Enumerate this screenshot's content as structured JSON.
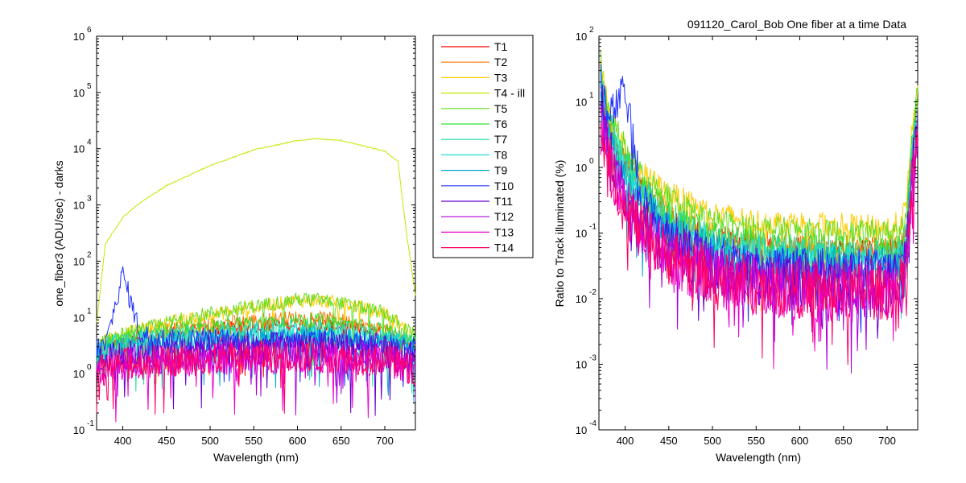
{
  "figure_title": "091120_Carol_Bob  One fiber at a time Data",
  "colors": {
    "T1": "#ff0000",
    "T2": "#ff7700",
    "T3": "#ffcc00",
    "T4 - ill": "#c8e600",
    "T5": "#66dd22",
    "T6": "#33dd33",
    "T7": "#22ddaa",
    "T8": "#22dddd",
    "T9": "#00aacc",
    "T10": "#2233ff",
    "T11": "#6600cc",
    "T12": "#aa00dd",
    "T13": "#ee00cc",
    "T14": "#ff0066"
  },
  "chart_data": [
    {
      "type": "line",
      "xlabel": "Wavelength (nm)",
      "ylabel": "one_fiber3  (ADU/sec) - darks",
      "xlim": [
        370,
        735
      ],
      "ylim": [
        0.1,
        1000000
      ],
      "yscale": "log",
      "xticks": [
        "400",
        "450",
        "500",
        "550",
        "600",
        "650",
        "700"
      ],
      "ytick_exponents": [
        "-1",
        "0",
        "1",
        "2",
        "3",
        "4",
        "5",
        "6"
      ],
      "ytick_base": "10",
      "legend": [
        "T1",
        "T2",
        "T3",
        "T4 - ill",
        "T5",
        "T6",
        "T7",
        "T8",
        "T9",
        "T10",
        "T11",
        "T12",
        "T13",
        "T14"
      ],
      "legend_position": "outside-right",
      "x": [
        370,
        380,
        400,
        420,
        450,
        500,
        550,
        600,
        620,
        650,
        700,
        715,
        725,
        735
      ],
      "series": [
        {
          "name": "T1",
          "values": [
            2,
            3,
            3.5,
            4,
            5,
            6,
            7,
            7.5,
            7.5,
            7,
            5,
            4,
            3.5,
            3
          ]
        },
        {
          "name": "T2",
          "values": [
            2,
            3,
            4,
            5,
            6,
            7.5,
            9,
            10,
            10,
            9,
            6,
            5,
            4,
            3.5
          ]
        },
        {
          "name": "T3",
          "values": [
            3,
            4,
            5,
            6,
            8,
            11,
            15,
            20,
            20,
            18,
            12,
            8,
            6,
            5
          ]
        },
        {
          "name": "T4 - ill",
          "values": [
            8,
            200,
            600,
            1100,
            2200,
            5000,
            9500,
            14000,
            15000,
            14000,
            9000,
            6000,
            300,
            25
          ]
        },
        {
          "name": "T5",
          "values": [
            3,
            4,
            5,
            6,
            8,
            12,
            16,
            21,
            21,
            18,
            12,
            8,
            6,
            5
          ]
        },
        {
          "name": "T6",
          "values": [
            2.5,
            3.5,
            4,
            5,
            6,
            7,
            8,
            9,
            9,
            8,
            6,
            5,
            4,
            4
          ]
        },
        {
          "name": "T7",
          "values": [
            2,
            3,
            3.5,
            4,
            4.5,
            5,
            5.5,
            6,
            6,
            5.5,
            4.5,
            4,
            3.5,
            3
          ]
        },
        {
          "name": "T8",
          "values": [
            2,
            3,
            3,
            3.5,
            4,
            4.5,
            5,
            5,
            5,
            4.8,
            4,
            3.5,
            3,
            3
          ]
        },
        {
          "name": "T9",
          "values": [
            1.8,
            2.5,
            3,
            3,
            3.5,
            4,
            4.2,
            4.5,
            4.5,
            4.2,
            3.5,
            3,
            3,
            2.8
          ]
        },
        {
          "name": "T10",
          "values": [
            3,
            3,
            60,
            5,
            4,
            4,
            4,
            4,
            4,
            4,
            3.5,
            3,
            3,
            3
          ]
        },
        {
          "name": "T11",
          "values": [
            1.5,
            2,
            2,
            2,
            2.5,
            2.5,
            2.8,
            3,
            3,
            2.8,
            2.5,
            2.2,
            2,
            2
          ]
        },
        {
          "name": "T12",
          "values": [
            1.2,
            1.5,
            1.8,
            1.8,
            2,
            2,
            2.2,
            2.3,
            2.3,
            2.2,
            2,
            1.8,
            1.6,
            1.5
          ]
        },
        {
          "name": "T13",
          "values": [
            1,
            1.2,
            1.5,
            1.5,
            1.6,
            1.8,
            1.8,
            2,
            2,
            1.8,
            1.6,
            1.5,
            1.3,
            1.2
          ]
        },
        {
          "name": "T14",
          "values": [
            1,
            1.3,
            1.5,
            1.6,
            1.7,
            1.8,
            2,
            2,
            2,
            1.9,
            1.7,
            1.5,
            1.3,
            1.2
          ]
        }
      ]
    },
    {
      "type": "line",
      "title": "091120_Carol_Bob  One fiber at a time Data",
      "xlabel": "Wavelength (nm)",
      "ylabel": "Ratio to Track illuminated (%)",
      "xlim": [
        370,
        735
      ],
      "ylim": [
        0.0001,
        100
      ],
      "yscale": "log",
      "xticks": [
        "400",
        "450",
        "500",
        "550",
        "600",
        "650",
        "700"
      ],
      "ytick_exponents": [
        "-4",
        "-3",
        "-2",
        "-1",
        "0",
        "1",
        "2"
      ],
      "ytick_base": "10",
      "x": [
        372,
        380,
        400,
        420,
        450,
        500,
        550,
        600,
        650,
        700,
        715,
        722,
        728,
        735
      ],
      "series": [
        {
          "name": "T1",
          "values": [
            20,
            5,
            1,
            0.4,
            0.15,
            0.08,
            0.06,
            0.055,
            0.05,
            0.05,
            0.06,
            0.1,
            1,
            5
          ]
        },
        {
          "name": "T2",
          "values": [
            30,
            6,
            1.2,
            0.5,
            0.2,
            0.1,
            0.07,
            0.065,
            0.06,
            0.06,
            0.07,
            0.12,
            1.5,
            8
          ]
        },
        {
          "name": "T3",
          "values": [
            40,
            8,
            2,
            0.8,
            0.4,
            0.2,
            0.15,
            0.14,
            0.13,
            0.12,
            0.14,
            0.25,
            3,
            15
          ]
        },
        {
          "name": "T4 - ill",
          "values": [
            100,
            100,
            100,
            100,
            100,
            100,
            100,
            100,
            100,
            100,
            100,
            100,
            100,
            100
          ]
        },
        {
          "name": "T5",
          "values": [
            40,
            8,
            2,
            0.7,
            0.35,
            0.15,
            0.12,
            0.11,
            0.1,
            0.1,
            0.12,
            0.2,
            3,
            15
          ]
        },
        {
          "name": "T6",
          "values": [
            30,
            6,
            1.5,
            0.5,
            0.2,
            0.1,
            0.07,
            0.06,
            0.06,
            0.055,
            0.065,
            0.1,
            2,
            10
          ]
        },
        {
          "name": "T7",
          "values": [
            20,
            5,
            1,
            0.35,
            0.15,
            0.07,
            0.05,
            0.045,
            0.04,
            0.04,
            0.05,
            0.08,
            1.5,
            8
          ]
        },
        {
          "name": "T8",
          "values": [
            20,
            4,
            0.8,
            0.3,
            0.12,
            0.06,
            0.045,
            0.04,
            0.038,
            0.035,
            0.04,
            0.07,
            1,
            6
          ]
        },
        {
          "name": "T9",
          "values": [
            15,
            3,
            0.6,
            0.25,
            0.1,
            0.05,
            0.035,
            0.032,
            0.03,
            0.03,
            0.035,
            0.06,
            1,
            5
          ]
        },
        {
          "name": "T10",
          "values": [
            30,
            5,
            15,
            0.3,
            0.1,
            0.05,
            0.035,
            0.03,
            0.03,
            0.028,
            0.03,
            0.05,
            1,
            5
          ]
        },
        {
          "name": "T11",
          "values": [
            10,
            2,
            0.4,
            0.15,
            0.06,
            0.03,
            0.022,
            0.02,
            0.018,
            0.017,
            0.02,
            0.04,
            0.7,
            4
          ]
        },
        {
          "name": "T12",
          "values": [
            8,
            1.5,
            0.3,
            0.12,
            0.05,
            0.025,
            0.018,
            0.016,
            0.015,
            0.014,
            0.016,
            0.03,
            0.6,
            3
          ]
        },
        {
          "name": "T13",
          "values": [
            6,
            1.2,
            0.25,
            0.1,
            0.04,
            0.02,
            0.015,
            0.013,
            0.012,
            0.012,
            0.014,
            0.025,
            0.5,
            3
          ]
        },
        {
          "name": "T14",
          "values": [
            6,
            1.2,
            0.25,
            0.1,
            0.045,
            0.022,
            0.016,
            0.014,
            0.013,
            0.013,
            0.015,
            0.028,
            0.5,
            3
          ]
        }
      ]
    }
  ]
}
